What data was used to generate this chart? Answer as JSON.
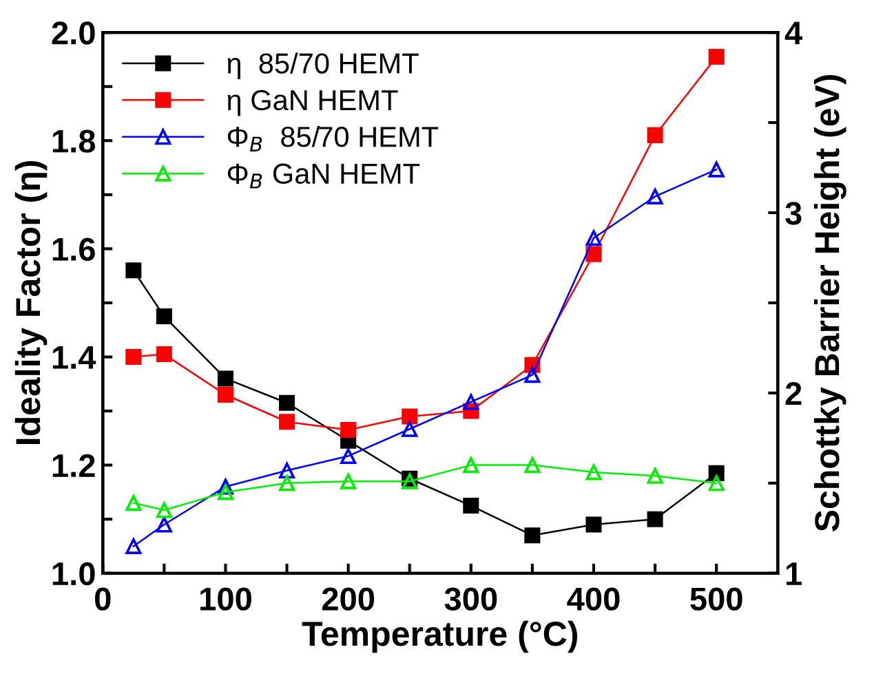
{
  "chart_data": {
    "type": "line",
    "xlabel": "Temperature (°C)",
    "ylabel": "Ideality Factor (η)",
    "y2label": "Schottky Barrier Height (eV)",
    "x": [
      25,
      50,
      100,
      150,
      200,
      250,
      300,
      350,
      400,
      450,
      500
    ],
    "series": [
      {
        "name": "η  85/70 HEMT",
        "color": "#000000",
        "marker": "square",
        "values": [
          1.56,
          1.475,
          1.36,
          1.315,
          1.245,
          1.175,
          1.125,
          1.07,
          1.09,
          1.1,
          1.185
        ]
      },
      {
        "name": "η GaN HEMT",
        "color": "#ff0000",
        "marker": "square",
        "values": [
          1.4,
          1.405,
          1.33,
          1.28,
          1.265,
          1.29,
          1.3,
          1.385,
          1.59,
          1.81,
          1.955
        ]
      },
      {
        "name": "Φ$_{B}$  85/70 HEMT",
        "color": "#0000ff",
        "marker": "triangle",
        "axis": "y2",
        "values": [
          1.15,
          1.27,
          1.48,
          1.57,
          1.65,
          1.8,
          1.95,
          2.1,
          2.86,
          3.09,
          3.24
        ]
      },
      {
        "name": "Φ$_{B}$ GaN HEMT",
        "color": "#00ee00",
        "marker": "triangle",
        "axis": "y2",
        "values": [
          1.39,
          1.35,
          1.45,
          1.5,
          1.51,
          1.51,
          1.6,
          1.6,
          1.56,
          1.54,
          1.5
        ]
      }
    ],
    "xlim": [
      0,
      550
    ],
    "xticks": [
      0,
      {
        "value": 50,
        "label": null
      },
      100,
      {
        "value": 150,
        "label": null
      },
      200,
      {
        "value": 250,
        "label": null
      },
      300,
      {
        "value": 350,
        "label": null
      },
      400,
      {
        "value": 450,
        "label": null
      },
      500
    ],
    "ylim": [
      1.0,
      2.0
    ],
    "yticks": [
      "1.0",
      {
        "value": 1.1,
        "label": null
      },
      1.2,
      {
        "value": 1.3,
        "label": null
      },
      1.4,
      {
        "value": 1.5,
        "label": null
      },
      1.6,
      {
        "value": 1.7,
        "label": null
      },
      1.8,
      {
        "value": 1.9,
        "label": null
      },
      "2.0"
    ],
    "y2lim": [
      1,
      4
    ],
    "y2ticks": [
      1,
      {
        "value": 1.5,
        "label": null
      },
      2,
      {
        "value": 2.5,
        "label": null
      },
      3,
      {
        "value": 3.5,
        "label": null
      },
      4
    ],
    "legend": "top left",
    "grid": false,
    "line_style": "solid"
  }
}
